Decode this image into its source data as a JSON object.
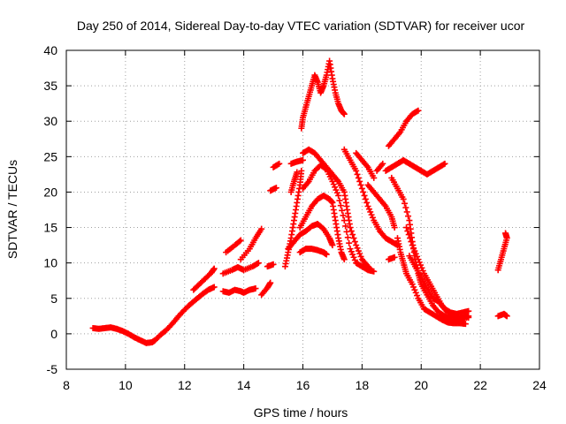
{
  "chart_data": {
    "type": "scatter",
    "title": "Day 250 of 2014, Sidereal Day-to-day VTEC variation (SDTVAR) for receiver ucor",
    "xlabel": "GPS time / hours",
    "ylabel": "SDTVAR / TECUs",
    "xlim": [
      8,
      24
    ],
    "ylim": [
      -5,
      40
    ],
    "xticks": [
      8,
      10,
      12,
      14,
      16,
      18,
      20,
      22,
      24
    ],
    "yticks": [
      -5,
      0,
      5,
      10,
      15,
      20,
      25,
      30,
      35,
      40
    ],
    "grid": true,
    "marker": "plus",
    "color": "#ff0000",
    "series": [
      {
        "points": [
          [
            8.9,
            0.8
          ],
          [
            9.1,
            0.7
          ],
          [
            9.3,
            0.8
          ],
          [
            9.5,
            0.9
          ],
          [
            9.7,
            0.7
          ],
          [
            9.9,
            0.4
          ],
          [
            10.1,
            0.0
          ],
          [
            10.3,
            -0.5
          ],
          [
            10.5,
            -0.9
          ],
          [
            10.7,
            -1.3
          ],
          [
            10.9,
            -1.2
          ],
          [
            11.0,
            -0.9
          ],
          [
            11.2,
            -0.1
          ],
          [
            11.4,
            0.6
          ],
          [
            11.6,
            1.5
          ],
          [
            11.8,
            2.5
          ],
          [
            12.0,
            3.4
          ],
          [
            12.2,
            4.2
          ],
          [
            12.4,
            4.9
          ],
          [
            12.6,
            5.6
          ],
          [
            12.8,
            6.2
          ],
          [
            13.0,
            6.6
          ]
        ]
      },
      {
        "points": [
          [
            12.3,
            6.2
          ],
          [
            12.5,
            7.0
          ],
          [
            12.7,
            7.8
          ],
          [
            12.9,
            8.6
          ],
          [
            13.0,
            9.2
          ]
        ]
      },
      {
        "points": [
          [
            13.3,
            6.0
          ],
          [
            13.5,
            5.8
          ],
          [
            13.7,
            6.2
          ],
          [
            13.9,
            6.0
          ],
          [
            14.0,
            5.8
          ],
          [
            14.2,
            6.2
          ],
          [
            14.4,
            6.4
          ]
        ]
      },
      {
        "points": [
          [
            13.3,
            8.5
          ],
          [
            13.6,
            9.0
          ],
          [
            13.8,
            9.4
          ],
          [
            14.0,
            9.0
          ],
          [
            14.3,
            9.5
          ],
          [
            14.5,
            10.0
          ]
        ]
      },
      {
        "points": [
          [
            13.4,
            11.5
          ],
          [
            13.7,
            12.5
          ],
          [
            13.9,
            13.2
          ]
        ]
      },
      {
        "points": [
          [
            13.9,
            10.5
          ],
          [
            14.2,
            12.0
          ],
          [
            14.4,
            13.5
          ],
          [
            14.6,
            14.8
          ]
        ]
      },
      {
        "points": [
          [
            14.6,
            5.5
          ],
          [
            14.8,
            6.5
          ],
          [
            14.9,
            7.2
          ]
        ]
      },
      {
        "points": [
          [
            14.8,
            9.5
          ],
          [
            15.0,
            9.8
          ]
        ]
      },
      {
        "points": [
          [
            14.9,
            20.2
          ],
          [
            15.1,
            20.6
          ]
        ]
      },
      {
        "points": [
          [
            15.0,
            23.5
          ],
          [
            15.2,
            24.0
          ]
        ]
      },
      {
        "points": [
          [
            15.4,
            9.5
          ],
          [
            15.5,
            11.5
          ],
          [
            15.6,
            13.5
          ],
          [
            15.7,
            16.0
          ],
          [
            15.8,
            18.5
          ],
          [
            15.9,
            21.0
          ],
          [
            15.95,
            23.0
          ]
        ]
      },
      {
        "points": [
          [
            15.6,
            24.0
          ],
          [
            15.8,
            24.3
          ],
          [
            16.0,
            24.5
          ]
        ]
      },
      {
        "points": [
          [
            15.6,
            20.0
          ],
          [
            15.7,
            21.5
          ],
          [
            15.8,
            22.8
          ]
        ]
      },
      {
        "points": [
          [
            15.5,
            12.0
          ],
          [
            15.7,
            13.0
          ],
          [
            15.9,
            14.0
          ],
          [
            16.1,
            14.5
          ],
          [
            16.3,
            15.2
          ],
          [
            16.5,
            15.5
          ],
          [
            16.7,
            14.8
          ],
          [
            16.9,
            13.5
          ],
          [
            17.0,
            12.5
          ]
        ]
      },
      {
        "points": [
          [
            15.9,
            11.5
          ],
          [
            16.1,
            12.0
          ],
          [
            16.3,
            12.0
          ],
          [
            16.5,
            11.8
          ],
          [
            16.7,
            11.5
          ],
          [
            16.8,
            11.2
          ]
        ]
      },
      {
        "points": [
          [
            15.9,
            15.0
          ],
          [
            16.1,
            16.5
          ],
          [
            16.3,
            18.0
          ],
          [
            16.5,
            19.0
          ],
          [
            16.7,
            19.5
          ],
          [
            16.9,
            19.0
          ],
          [
            17.0,
            18.5
          ],
          [
            17.1,
            16.0
          ],
          [
            17.2,
            13.5
          ],
          [
            17.3,
            11.5
          ],
          [
            17.4,
            10.5
          ]
        ]
      },
      {
        "points": [
          [
            16.0,
            25.5
          ],
          [
            16.2,
            26.0
          ],
          [
            16.4,
            25.5
          ],
          [
            16.6,
            24.5
          ],
          [
            16.8,
            23.5
          ],
          [
            17.0,
            22.5
          ],
          [
            17.2,
            21.5
          ],
          [
            17.4,
            20.0
          ],
          [
            17.5,
            17.5
          ],
          [
            17.6,
            15.0
          ],
          [
            17.8,
            12.5
          ],
          [
            18.0,
            10.5
          ],
          [
            18.2,
            9.5
          ],
          [
            18.3,
            9.0
          ]
        ]
      },
      {
        "points": [
          [
            16.0,
            20.5
          ],
          [
            16.2,
            21.5
          ],
          [
            16.4,
            23.0
          ],
          [
            16.6,
            23.8
          ],
          [
            16.8,
            23.2
          ],
          [
            17.0,
            21.5
          ],
          [
            17.2,
            19.5
          ],
          [
            17.4,
            16.0
          ],
          [
            17.6,
            12.0
          ],
          [
            17.8,
            10.0
          ],
          [
            18.0,
            9.5
          ],
          [
            18.2,
            9.0
          ],
          [
            18.4,
            8.8
          ]
        ]
      },
      {
        "points": [
          [
            15.95,
            29.0
          ],
          [
            16.0,
            30.5
          ],
          [
            16.1,
            32.0
          ],
          [
            16.2,
            33.5
          ],
          [
            16.3,
            35.0
          ],
          [
            16.4,
            36.5
          ],
          [
            16.5,
            35.5
          ],
          [
            16.6,
            34.0
          ],
          [
            16.7,
            35.0
          ],
          [
            16.8,
            36.5
          ],
          [
            16.9,
            38.5
          ],
          [
            17.0,
            36.0
          ],
          [
            17.1,
            34.0
          ],
          [
            17.2,
            32.5
          ],
          [
            17.3,
            31.5
          ],
          [
            17.4,
            31.0
          ]
        ]
      },
      {
        "points": [
          [
            17.4,
            26.0
          ],
          [
            17.6,
            24.5
          ],
          [
            17.8,
            23.0
          ],
          [
            18.0,
            20.5
          ],
          [
            18.2,
            18.0
          ],
          [
            18.4,
            16.0
          ],
          [
            18.6,
            14.5
          ],
          [
            18.8,
            13.5
          ],
          [
            19.0,
            13.0
          ],
          [
            19.2,
            12.5
          ]
        ]
      },
      {
        "points": [
          [
            17.8,
            25.5
          ],
          [
            18.0,
            24.5
          ],
          [
            18.2,
            23.5
          ],
          [
            18.4,
            22.0
          ]
        ]
      },
      {
        "points": [
          [
            18.2,
            21.0
          ],
          [
            18.4,
            20.0
          ],
          [
            18.6,
            19.0
          ],
          [
            18.8,
            18.0
          ],
          [
            19.0,
            16.5
          ],
          [
            19.1,
            15.0
          ]
        ]
      },
      {
        "points": [
          [
            18.5,
            23.0
          ],
          [
            18.7,
            24.0
          ]
        ]
      },
      {
        "points": [
          [
            18.9,
            26.5
          ],
          [
            19.1,
            27.5
          ],
          [
            19.3,
            28.5
          ],
          [
            19.5,
            30.0
          ],
          [
            19.7,
            31.0
          ],
          [
            19.9,
            31.5
          ]
        ]
      },
      {
        "points": [
          [
            18.8,
            23.0
          ],
          [
            19.0,
            23.5
          ],
          [
            19.2,
            24.0
          ],
          [
            19.4,
            24.5
          ],
          [
            19.6,
            24.0
          ],
          [
            19.8,
            23.5
          ],
          [
            20.0,
            23.0
          ],
          [
            20.2,
            22.5
          ],
          [
            20.4,
            23.0
          ],
          [
            20.6,
            23.5
          ],
          [
            20.8,
            24.0
          ]
        ]
      },
      {
        "points": [
          [
            19.0,
            22.0
          ],
          [
            19.2,
            20.5
          ],
          [
            19.4,
            19.0
          ],
          [
            19.6,
            16.0
          ],
          [
            19.7,
            13.0
          ],
          [
            19.8,
            10.5
          ],
          [
            19.9,
            8.5
          ],
          [
            20.0,
            7.0
          ],
          [
            20.2,
            5.5
          ],
          [
            20.4,
            4.0
          ],
          [
            20.6,
            3.0
          ],
          [
            20.8,
            2.5
          ],
          [
            21.0,
            2.0
          ],
          [
            21.2,
            2.0
          ],
          [
            21.4,
            2.2
          ],
          [
            21.6,
            2.5
          ]
        ]
      },
      {
        "points": [
          [
            19.2,
            13.5
          ],
          [
            19.3,
            11.5
          ],
          [
            19.4,
            10.0
          ],
          [
            19.5,
            8.5
          ],
          [
            19.7,
            7.0
          ],
          [
            19.9,
            5.0
          ],
          [
            20.1,
            3.5
          ],
          [
            20.3,
            3.0
          ],
          [
            20.5,
            2.5
          ],
          [
            20.7,
            2.0
          ],
          [
            20.9,
            1.6
          ],
          [
            21.1,
            1.5
          ],
          [
            21.3,
            1.5
          ],
          [
            21.5,
            1.4
          ]
        ]
      },
      {
        "points": [
          [
            19.5,
            15.0
          ],
          [
            19.7,
            12.5
          ],
          [
            19.9,
            10.5
          ],
          [
            20.1,
            8.5
          ],
          [
            20.3,
            7.0
          ],
          [
            20.5,
            5.5
          ],
          [
            20.7,
            4.0
          ],
          [
            20.9,
            3.0
          ],
          [
            21.1,
            2.5
          ],
          [
            21.3,
            2.2
          ],
          [
            21.6,
            2.3
          ]
        ]
      },
      {
        "points": [
          [
            19.6,
            11.0
          ],
          [
            19.8,
            9.5
          ],
          [
            20.0,
            8.0
          ],
          [
            20.2,
            6.5
          ],
          [
            20.4,
            5.0
          ],
          [
            20.6,
            4.5
          ],
          [
            20.8,
            3.5
          ],
          [
            21.0,
            3.0
          ],
          [
            21.2,
            2.8
          ],
          [
            21.4,
            3.0
          ],
          [
            21.6,
            3.2
          ]
        ]
      },
      {
        "points": [
          [
            18.9,
            10.5
          ],
          [
            19.1,
            10.8
          ]
        ]
      },
      {
        "points": [
          [
            22.6,
            2.5
          ],
          [
            22.8,
            2.8
          ],
          [
            22.9,
            2.5
          ]
        ]
      },
      {
        "points": [
          [
            22.6,
            9.0
          ],
          [
            22.7,
            10.5
          ],
          [
            22.8,
            12.0
          ],
          [
            22.9,
            13.5
          ],
          [
            22.85,
            14.2
          ]
        ]
      }
    ]
  }
}
